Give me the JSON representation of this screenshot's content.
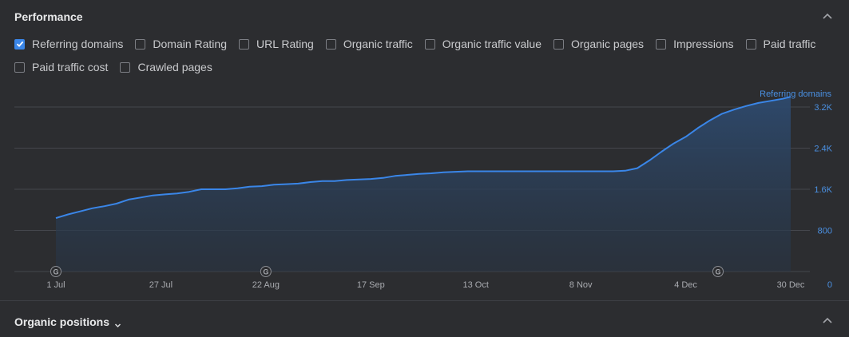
{
  "performance": {
    "title": "Performance",
    "options_row1": [
      {
        "label": "Referring domains",
        "checked": true
      },
      {
        "label": "Domain Rating",
        "checked": false
      },
      {
        "label": "URL Rating",
        "checked": false
      },
      {
        "label": "Organic traffic",
        "checked": false
      },
      {
        "label": "Organic traffic value",
        "checked": false
      },
      {
        "label": "Organic pages",
        "checked": false
      },
      {
        "label": "Impressions",
        "checked": false
      },
      {
        "label": "Paid traffic",
        "checked": false
      }
    ],
    "options_row2": [
      {
        "label": "Paid traffic cost",
        "checked": false
      },
      {
        "label": "Crawled pages",
        "checked": false
      }
    ]
  },
  "chart_data": {
    "type": "area",
    "series": [
      {
        "name": "Referring domains",
        "color": "#3a86e8",
        "fill": "#2a3f5c"
      }
    ],
    "x": [
      "2023-07-01",
      "2023-07-04",
      "2023-07-07",
      "2023-07-10",
      "2023-07-13",
      "2023-07-16",
      "2023-07-19",
      "2023-07-22",
      "2023-07-25",
      "2023-07-28",
      "2023-07-31",
      "2023-08-03",
      "2023-08-06",
      "2023-08-09",
      "2023-08-12",
      "2023-08-15",
      "2023-08-18",
      "2023-08-21",
      "2023-08-24",
      "2023-08-27",
      "2023-08-30",
      "2023-09-02",
      "2023-09-05",
      "2023-09-08",
      "2023-09-11",
      "2023-09-14",
      "2023-09-17",
      "2023-09-20",
      "2023-09-23",
      "2023-09-26",
      "2023-09-29",
      "2023-10-02",
      "2023-10-05",
      "2023-10-08",
      "2023-10-11",
      "2023-10-14",
      "2023-10-17",
      "2023-10-20",
      "2023-10-23",
      "2023-10-26",
      "2023-10-29",
      "2023-11-01",
      "2023-11-04",
      "2023-11-07",
      "2023-11-10",
      "2023-11-13",
      "2023-11-16",
      "2023-11-19",
      "2023-11-22",
      "2023-11-25",
      "2023-11-28",
      "2023-12-01",
      "2023-12-04",
      "2023-12-07",
      "2023-12-10",
      "2023-12-13",
      "2023-12-16",
      "2023-12-19",
      "2023-12-22",
      "2023-12-25",
      "2023-12-28",
      "2023-12-30"
    ],
    "values": [
      1040,
      1110,
      1170,
      1230,
      1270,
      1320,
      1400,
      1440,
      1480,
      1500,
      1520,
      1550,
      1600,
      1600,
      1600,
      1620,
      1650,
      1660,
      1690,
      1700,
      1710,
      1740,
      1760,
      1760,
      1780,
      1790,
      1800,
      1820,
      1860,
      1880,
      1900,
      1910,
      1930,
      1940,
      1950,
      1950,
      1950,
      1950,
      1950,
      1950,
      1950,
      1950,
      1950,
      1950,
      1950,
      1950,
      1950,
      1960,
      2010,
      2160,
      2330,
      2490,
      2620,
      2790,
      2940,
      3070,
      3150,
      3220,
      3280,
      3320,
      3360,
      3400
    ],
    "y_ticks": [
      {
        "label": "0",
        "value": 0
      },
      {
        "label": "800",
        "value": 800
      },
      {
        "label": "1.6K",
        "value": 1600
      },
      {
        "label": "2.4K",
        "value": 2400
      },
      {
        "label": "3.2K",
        "value": 3200
      }
    ],
    "ylim": [
      0,
      3200
    ],
    "y_series_label": "Referring domains",
    "x_ticks": [
      {
        "label": "1 Jul",
        "x": "2023-07-01"
      },
      {
        "label": "27 Jul",
        "x": "2023-07-27"
      },
      {
        "label": "22 Aug",
        "x": "2023-08-22"
      },
      {
        "label": "17 Sep",
        "x": "2023-09-17"
      },
      {
        "label": "13 Oct",
        "x": "2023-10-13"
      },
      {
        "label": "8 Nov",
        "x": "2023-11-08"
      },
      {
        "label": "4 Dec",
        "x": "2023-12-04"
      },
      {
        "label": "30 Dec",
        "x": "2023-12-30"
      }
    ],
    "annotations": [
      {
        "label": "G",
        "x": "2023-07-01"
      },
      {
        "label": "G",
        "x": "2023-08-22"
      },
      {
        "label": "G",
        "x": "2023-12-12"
      }
    ],
    "grid": true
  },
  "organic_positions": {
    "title": "Organic positions"
  }
}
